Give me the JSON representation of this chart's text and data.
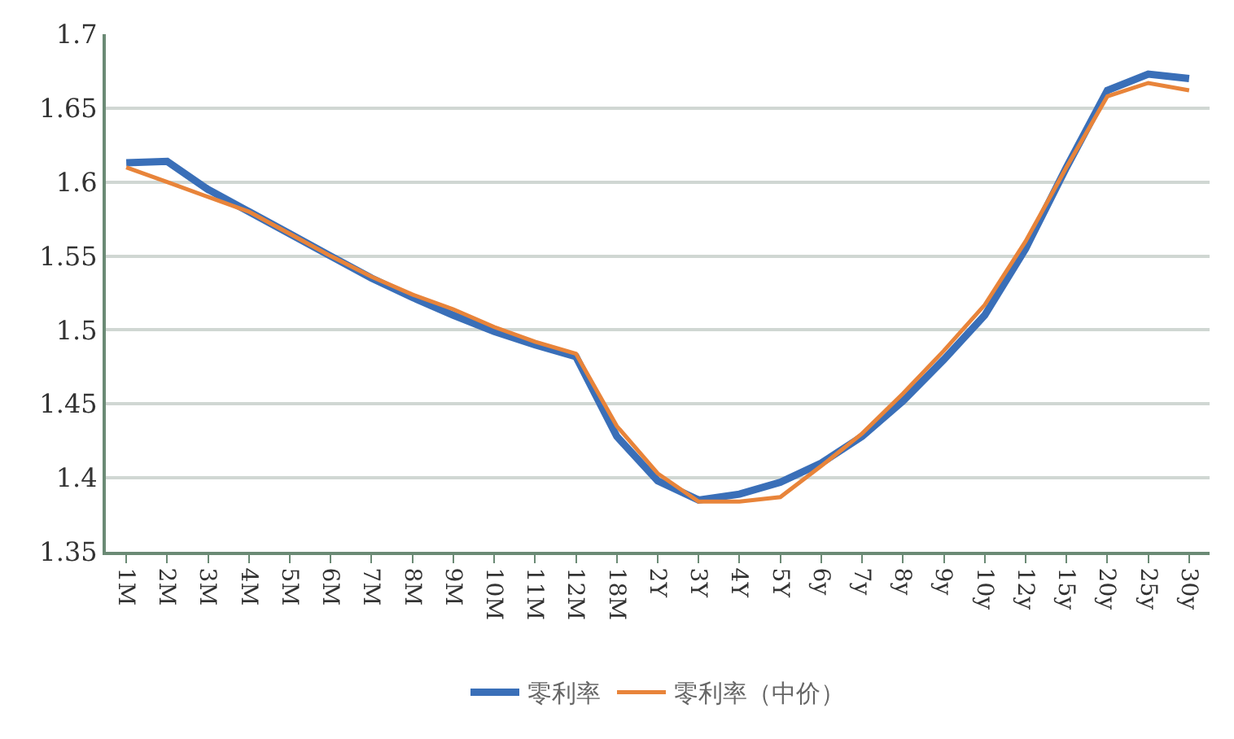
{
  "chart_data": {
    "type": "line",
    "categories": [
      "1M",
      "2M",
      "3M",
      "4M",
      "5M",
      "6M",
      "7M",
      "8M",
      "9M",
      "10M",
      "11M",
      "12M",
      "18M",
      "2Y",
      "3Y",
      "4Y",
      "5Y",
      "6y",
      "7y",
      "8y",
      "9y",
      "10y",
      "12y",
      "15y",
      "20y",
      "25y",
      "30y"
    ],
    "series": [
      {
        "name": "零利率",
        "color": "#3a6fb8",
        "values": [
          1.613,
          1.614,
          1.595,
          1.58,
          1.565,
          1.55,
          1.535,
          1.522,
          1.51,
          1.499,
          1.49,
          1.482,
          1.428,
          1.398,
          1.385,
          1.389,
          1.397,
          1.41,
          1.428,
          1.452,
          1.48,
          1.51,
          1.555,
          1.61,
          1.662,
          1.673,
          1.67
        ]
      },
      {
        "name": "零利率（中价）",
        "color": "#e8843a",
        "values": [
          1.61,
          1.6,
          1.59,
          1.58,
          1.565,
          1.55,
          1.536,
          1.524,
          1.514,
          1.502,
          1.492,
          1.484,
          1.435,
          1.403,
          1.384,
          1.384,
          1.387,
          1.408,
          1.43,
          1.457,
          1.486,
          1.517,
          1.56,
          1.61,
          1.658,
          1.667,
          1.662
        ]
      }
    ],
    "ylim": [
      1.35,
      1.7
    ],
    "yticks": [
      1.35,
      1.4,
      1.45,
      1.5,
      1.55,
      1.6,
      1.65,
      1.7
    ],
    "grid": "y",
    "legend": "bottom",
    "marker": "none",
    "line_style": "solid"
  }
}
